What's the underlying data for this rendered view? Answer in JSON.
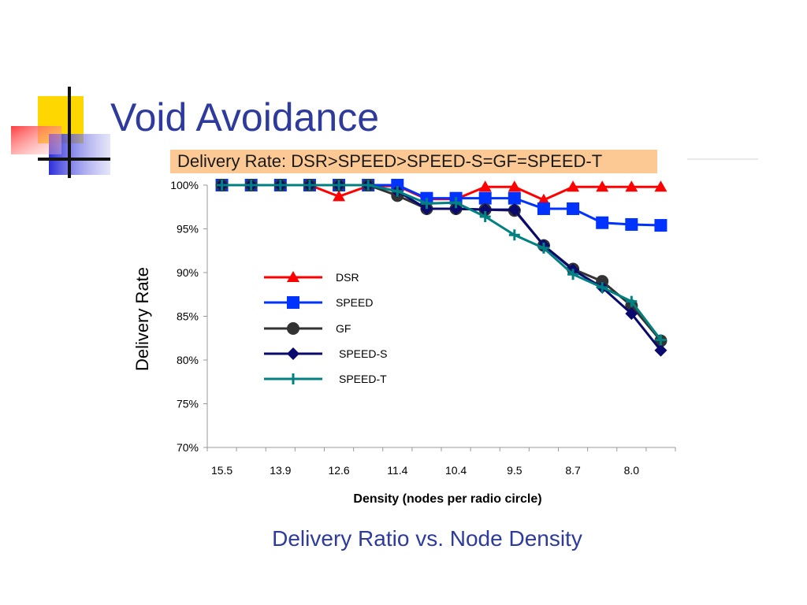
{
  "slide": {
    "title": "Void Avoidance",
    "banner": "Delivery Rate: DSR>SPEED>SPEED-S=GF=SPEED-T",
    "subtitle": "Delivery Ratio vs. Node Density"
  },
  "chart_data": {
    "type": "line",
    "xlabel": "Density (nodes per radio circle)",
    "ylabel": "Delivery Rate",
    "x_tick_labels": [
      "15.5",
      "13.9",
      "12.6",
      "11.4",
      "10.4",
      "9.5",
      "8.7",
      "8.0"
    ],
    "y_tick_labels": [
      "100%",
      "95%",
      "90%",
      "85%",
      "80%",
      "75%",
      "70%"
    ],
    "ylim": [
      70,
      100
    ],
    "y_unit": "%",
    "grid": false,
    "legend_position": "center-left inside plot",
    "series": [
      {
        "name": "DSR",
        "color": "#ff0000",
        "marker": "triangle",
        "values": [
          100,
          100,
          100,
          100,
          98.7,
          99.9,
          99.9,
          98.4,
          98.4,
          99.8,
          99.8,
          98.3,
          99.8,
          99.8,
          99.8,
          99.8
        ]
      },
      {
        "name": "SPEED",
        "color": "#0033ff",
        "marker": "square",
        "values": [
          100,
          100,
          100,
          100,
          100,
          100,
          100,
          98.5,
          98.5,
          98.5,
          98.5,
          97.3,
          97.3,
          95.7,
          95.5,
          95.4
        ]
      },
      {
        "name": "GF",
        "color": "#333333",
        "marker": "circle",
        "values": [
          100,
          100,
          100,
          100,
          100,
          100,
          98.8,
          97.3,
          97.3,
          97.2,
          97.1,
          93.1,
          90.4,
          89.0,
          86.2,
          82.2
        ]
      },
      {
        "name": "SPEED-S",
        "color": "#0a0a6e",
        "marker": "diamond",
        "values": [
          100,
          100,
          100,
          100,
          100,
          100,
          99.3,
          97.3,
          97.3,
          97.2,
          97.2,
          93.1,
          90.3,
          88.3,
          85.3,
          81.1
        ]
      },
      {
        "name": "SPEED-T",
        "color": "#008080",
        "marker": "plus",
        "values": [
          100,
          100,
          100,
          100,
          100,
          100,
          99.3,
          97.9,
          98.0,
          96.4,
          94.3,
          92.8,
          89.8,
          88.3,
          86.7,
          82.3
        ]
      }
    ]
  }
}
